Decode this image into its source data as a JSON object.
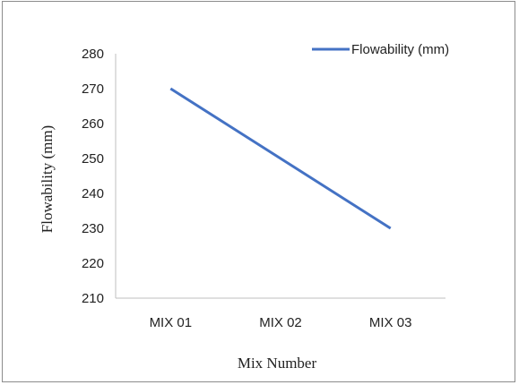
{
  "chart_data": {
    "type": "line",
    "categories": [
      "MIX 01",
      "MIX 02",
      "MIX 03"
    ],
    "series": [
      {
        "name": "Flowability (mm)",
        "values": [
          270,
          250,
          230
        ],
        "color": "#4472c4"
      }
    ],
    "xlabel": "Mix Number",
    "ylabel": "Flowability (mm)",
    "ylim": [
      210,
      280
    ],
    "yticks": [
      210,
      220,
      230,
      240,
      250,
      260,
      270,
      280
    ],
    "grid": false,
    "legend_position": "top-right"
  }
}
